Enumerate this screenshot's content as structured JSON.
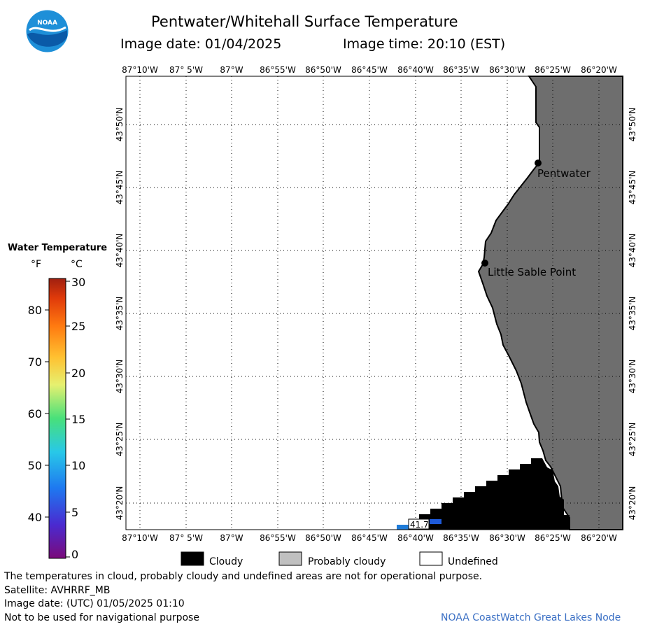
{
  "title": "Pentwater/Whitehall Surface Temperature",
  "image_date_label": "Image date: 01/04/2025",
  "image_time_label": "Image time: 20:10 (EST)",
  "logo_text": "NOAA",
  "lon_labels": [
    "87°10'W",
    "87° 5'W",
    "87°W",
    "86°55'W",
    "86°50'W",
    "86°45'W",
    "86°40'W",
    "86°35'W",
    "86°30'W",
    "86°25'W",
    "86°20'W"
  ],
  "lat_labels": [
    "43°50'N",
    "43°45'N",
    "43°40'N",
    "43°35'N",
    "43°30'N",
    "43°25'N",
    "43°20'N"
  ],
  "places": [
    {
      "name": "Pentwater"
    },
    {
      "name": "Little Sable Point"
    }
  ],
  "data_label": "41.7",
  "colorbar": {
    "title": "Water Temperature",
    "unit_f": "°F",
    "unit_c": "°C",
    "f_ticks": [
      "80",
      "70",
      "60",
      "50",
      "40"
    ],
    "c_ticks": [
      "30",
      "25",
      "20",
      "15",
      "10",
      "5",
      "0"
    ]
  },
  "legend": {
    "cloudy": "Cloudy",
    "probably_cloudy": "Probably cloudy",
    "undefined": "Undefined"
  },
  "footer": {
    "disclaimer": "The temperatures in cloud, probably cloudy and undefined areas are not for operational purpose.",
    "satellite": "Satellite: AVHRRF_MB",
    "utc_date": "Image date: (UTC) 01/05/2025  01:10",
    "nav_warning": "Not to be used for navigational purpose",
    "credit": "NOAA CoastWatch Great Lakes Node"
  },
  "colors": {
    "land": "#6e6e6e",
    "cloud": "#000000",
    "probably_cloudy": "#c0c0c0",
    "credit_blue": "#3a6fc4",
    "logo_blue": "#1e8fd8"
  }
}
